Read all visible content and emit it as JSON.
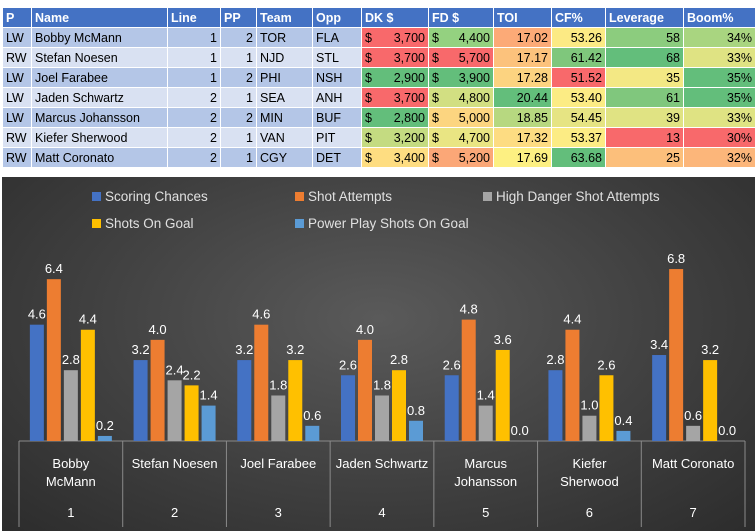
{
  "table": {
    "headers": [
      "P",
      "Name",
      "Line",
      "PP",
      "Team",
      "Opp",
      "DK $",
      "FD $",
      "TOI",
      "CF%",
      "Leverage",
      "Boom%"
    ],
    "rows": [
      {
        "p": "LW",
        "name": "Bobby McMann",
        "line": "1",
        "pp": "2",
        "team": "TOR",
        "opp": "FLA",
        "dk_sym": "$",
        "dk": "3,700",
        "fd_sym": "$",
        "fd": "4,400",
        "toi": "17.02",
        "cf": "53.26",
        "leverage": "58",
        "boom": "34%",
        "colors": {
          "dk": "#f8696b",
          "fd": "#94d180",
          "toi": "#fcaa77",
          "cf": "#fcea84",
          "leverage": "#8ccc7e",
          "boom": "#a9d580"
        }
      },
      {
        "p": "RW",
        "name": "Stefan Noesen",
        "line": "1",
        "pp": "1",
        "team": "NJD",
        "opp": "STL",
        "dk_sym": "$",
        "dk": "3,700",
        "fd_sym": "$",
        "fd": "5,700",
        "toi": "17.17",
        "cf": "61.42",
        "leverage": "68",
        "boom": "33%",
        "colors": {
          "dk": "#f8696b",
          "fd": "#f8696b",
          "toi": "#fcc27c",
          "cf": "#7fc77c",
          "leverage": "#63be7b",
          "boom": "#dfe383"
        }
      },
      {
        "p": "LW",
        "name": "Joel Farabee",
        "line": "1",
        "pp": "2",
        "team": "PHI",
        "opp": "NSH",
        "dk_sym": "$",
        "dk": "2,900",
        "fd_sym": "$",
        "fd": "3,900",
        "toi": "17.28",
        "cf": "51.52",
        "leverage": "35",
        "boom": "35%",
        "colors": {
          "dk": "#63be7b",
          "fd": "#63be7b",
          "toi": "#fcd380",
          "cf": "#f8696b",
          "leverage": "#f3e884",
          "boom": "#63be7b"
        }
      },
      {
        "p": "LW",
        "name": "Jaden Schwartz",
        "line": "2",
        "pp": "1",
        "team": "SEA",
        "opp": "ANH",
        "dk_sym": "$",
        "dk": "3,700",
        "fd_sym": "$",
        "fd": "4,800",
        "toi": "20.44",
        "cf": "53.40",
        "leverage": "61",
        "boom": "35%",
        "colors": {
          "dk": "#f8696b",
          "fd": "#d2df82",
          "toi": "#63be7b",
          "cf": "#fcec84",
          "leverage": "#80c77d",
          "boom": "#63be7b"
        }
      },
      {
        "p": "LW",
        "name": "Marcus Johansson",
        "line": "2",
        "pp": "2",
        "team": "MIN",
        "opp": "BUF",
        "dk_sym": "$",
        "dk": "2,800",
        "fd_sym": "$",
        "fd": "5,000",
        "toi": "18.85",
        "cf": "54.45",
        "leverage": "39",
        "boom": "33%",
        "colors": {
          "dk": "#63be7b",
          "fd": "#fcd580",
          "toi": "#b7d880",
          "cf": "#e6e483",
          "leverage": "#e0e383",
          "boom": "#dfe383"
        }
      },
      {
        "p": "RW",
        "name": "Kiefer Sherwood",
        "line": "2",
        "pp": "1",
        "team": "VAN",
        "opp": "PIT",
        "dk_sym": "$",
        "dk": "3,200",
        "fd_sym": "$",
        "fd": "4,700",
        "toi": "17.32",
        "cf": "53.37",
        "leverage": "13",
        "boom": "30%",
        "colors": {
          "dk": "#c4db81",
          "fd": "#e9e583",
          "toi": "#fddc82",
          "cf": "#fcec84",
          "leverage": "#f8696b",
          "boom": "#f8696b"
        }
      },
      {
        "p": "RW",
        "name": "Matt Coronato",
        "line": "2",
        "pp": "1",
        "team": "CGY",
        "opp": "DET",
        "dk_sym": "$",
        "dk": "3,400",
        "fd_sym": "$",
        "fd": "5,200",
        "toi": "17.69",
        "cf": "63.68",
        "leverage": "25",
        "boom": "32%",
        "colors": {
          "dk": "#fedd81",
          "fd": "#fba777",
          "toi": "#fdf082",
          "cf": "#63be7b",
          "leverage": "#fcbf7b",
          "boom": "#fcb67a"
        }
      }
    ]
  },
  "chart_data": {
    "type": "bar",
    "categories": [
      {
        "name": [
          "Bobby",
          "McMann"
        ],
        "index": "1"
      },
      {
        "name": [
          "Stefan Noesen"
        ],
        "index": "2"
      },
      {
        "name": [
          "Joel Farabee"
        ],
        "index": "3"
      },
      {
        "name": [
          "Jaden Schwartz"
        ],
        "index": "4"
      },
      {
        "name": [
          "Marcus",
          "Johansson"
        ],
        "index": "5"
      },
      {
        "name": [
          "Kiefer",
          "Sherwood"
        ],
        "index": "6"
      },
      {
        "name": [
          "Matt Coronato"
        ],
        "index": "7"
      }
    ],
    "series": [
      {
        "name": "Scoring Chances",
        "color": "#4472c4",
        "values": [
          4.6,
          3.2,
          3.2,
          2.6,
          2.6,
          2.8,
          3.4
        ],
        "labels": [
          "4.6",
          "3.2",
          "3.2",
          "2.6",
          "2.6",
          "2.8",
          "3.4"
        ]
      },
      {
        "name": "Shot Attempts",
        "color": "#ed7d31",
        "values": [
          6.4,
          4.0,
          4.6,
          4.0,
          4.8,
          4.4,
          6.8
        ],
        "labels": [
          "6.4",
          "4.0",
          "4.6",
          "4.0",
          "4.8",
          "4.4",
          "6.8"
        ]
      },
      {
        "name": "High Danger Shot Attempts",
        "color": "#a5a5a5",
        "values": [
          2.8,
          2.4,
          1.8,
          1.8,
          1.4,
          1.0,
          0.6
        ],
        "labels": [
          "2.8",
          "2.4",
          "1.8",
          "1.8",
          "1.4",
          "1.0",
          "0.6"
        ]
      },
      {
        "name": "Shots On Goal",
        "color": "#ffc000",
        "values": [
          4.4,
          2.2,
          3.2,
          2.8,
          3.6,
          2.6,
          3.2
        ],
        "labels": [
          "4.4",
          "2.2",
          "3.2",
          "2.8",
          "3.6",
          "2.6",
          "3.2"
        ]
      },
      {
        "name": "Power Play Shots On Goal",
        "color": "#5b9bd5",
        "values": [
          0.2,
          1.4,
          0.6,
          0.8,
          0.0,
          0.4,
          0.0
        ],
        "labels": [
          "0.2",
          "1.4",
          "0.6",
          "0.8",
          "0.0",
          "0.4",
          "0.0"
        ]
      }
    ],
    "ylim": [
      0,
      7
    ],
    "legend_position": "top",
    "grid": false
  }
}
